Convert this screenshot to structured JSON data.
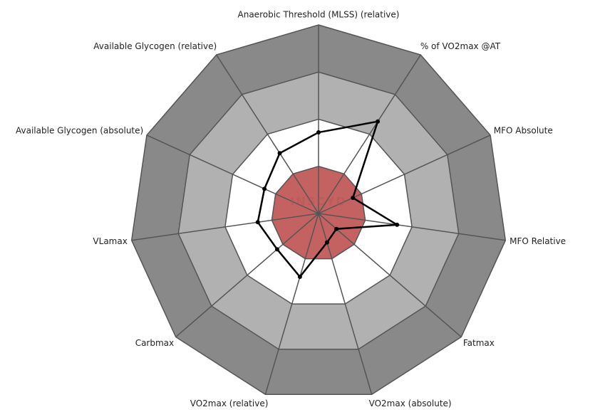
{
  "chart_data": {
    "type": "radar",
    "watermark": "INSCYD",
    "categories": [
      "Anaerobic Threshold (MLSS) (relative)",
      "% of VO2max @AT",
      "MFO Absolute",
      "MFO Relative",
      "Fatmax",
      "VO2max (absolute)",
      "VO2max (relative)",
      "Carbmax",
      "VLamax",
      "Available Glycogen (absolute)",
      "Available Glycogen (relative)"
    ],
    "series": [
      {
        "color": "#000000",
        "values": [
          43,
          58,
          20,
          42,
          12.5,
          16,
          35,
          29,
          32.5,
          31.5,
          38
        ]
      }
    ],
    "rlim": [
      0,
      100
    ],
    "bands": [
      {
        "to": 100,
        "color": "#898989"
      },
      {
        "to": 75,
        "color": "#b1b1b1"
      },
      {
        "to": 50,
        "color": "#ffffff"
      },
      {
        "to": 25,
        "color": "#c46262"
      }
    ]
  }
}
